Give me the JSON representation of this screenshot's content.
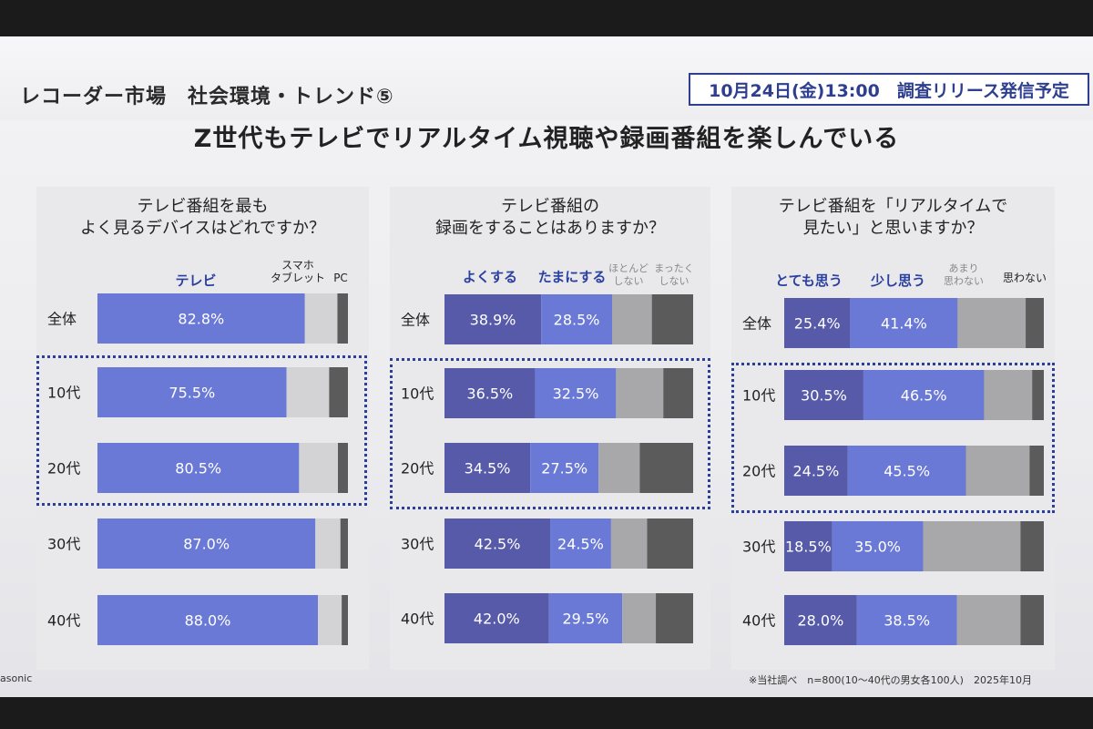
{
  "slide": {
    "title": "レコーダー市場　社会環境・トレンド⑤",
    "badge": "10月24日(金)13:00　調査リリース発信予定",
    "headline": "Z世代もテレビでリアルタイム視聴や録画番組を楽しんでいる",
    "footnote": "※当社調べ　n=800(10～40代の男女各100人)　2025年10月",
    "brand": "asonic"
  },
  "colors": {
    "dark_blue": "#565aa8",
    "light_blue": "#6a79d6",
    "light_gray": "#d3d3d5",
    "mid_gray": "#a8a8aa",
    "dark_gray": "#5c5b5c",
    "dotted_box": "#2a3e9a"
  },
  "chart_data": [
    {
      "type": "bar",
      "stacked": true,
      "orientation": "horizontal",
      "title": "テレビ番組を最も\nよく見るデバイスはどれですか？",
      "categories": [
        "全体",
        "10代",
        "20代",
        "30代",
        "40代"
      ],
      "series": [
        {
          "name": "テレビ",
          "values": [
            82.8,
            75.5,
            80.5,
            87.0,
            88.0
          ],
          "labels": [
            "82.8%",
            "75.5%",
            "80.5%",
            "87.0%",
            "88.0%"
          ]
        },
        {
          "name": "スマホ タブレット",
          "values": [
            13.0,
            17.0,
            15.5,
            10.0,
            9.5
          ]
        },
        {
          "name": "PC",
          "values": [
            4.2,
            7.5,
            4.0,
            3.0,
            2.5
          ]
        }
      ],
      "highlight": [
        "10代",
        "20代"
      ],
      "xlim": [
        0,
        100
      ]
    },
    {
      "type": "bar",
      "stacked": true,
      "orientation": "horizontal",
      "title": "テレビ番組の\n録画をすることはありますか？",
      "categories": [
        "全体",
        "10代",
        "20代",
        "30代",
        "40代"
      ],
      "series": [
        {
          "name": "よくする",
          "values": [
            38.9,
            36.5,
            34.5,
            42.5,
            42.0
          ],
          "labels": [
            "38.9%",
            "36.5%",
            "34.5%",
            "42.5%",
            "42.0%"
          ]
        },
        {
          "name": "たまにする",
          "values": [
            28.5,
            32.5,
            27.5,
            24.5,
            29.5
          ],
          "labels": [
            "28.5%",
            "32.5%",
            "27.5%",
            "24.5%",
            "29.5%"
          ]
        },
        {
          "name": "ほとんど しない",
          "values": [
            16.0,
            19.0,
            16.5,
            14.5,
            13.5
          ]
        },
        {
          "name": "まったく しない",
          "values": [
            16.6,
            12.0,
            21.5,
            18.5,
            15.0
          ]
        }
      ],
      "highlight": [
        "10代",
        "20代"
      ],
      "xlim": [
        0,
        100
      ]
    },
    {
      "type": "bar",
      "stacked": true,
      "orientation": "horizontal",
      "title": "テレビ番組を「リアルタイムで\n見たい」と思いますか？",
      "categories": [
        "全体",
        "10代",
        "20代",
        "30代",
        "40代"
      ],
      "series": [
        {
          "name": "とても思う",
          "values": [
            25.4,
            30.5,
            24.5,
            18.5,
            28.0
          ],
          "labels": [
            "25.4%",
            "30.5%",
            "24.5%",
            "18.5%",
            "28.0%"
          ]
        },
        {
          "name": "少し思う",
          "values": [
            41.4,
            46.5,
            45.5,
            35.0,
            38.5
          ],
          "labels": [
            "41.4%",
            "46.5%",
            "45.5%",
            "35.0%",
            "38.5%"
          ]
        },
        {
          "name": "あまり 思わない",
          "values": [
            26.2,
            18.5,
            24.5,
            37.5,
            24.5
          ]
        },
        {
          "name": "思わない",
          "values": [
            7.0,
            4.5,
            5.5,
            9.0,
            9.0
          ]
        }
      ],
      "highlight": [
        "10代",
        "20代"
      ],
      "xlim": [
        0,
        100
      ]
    }
  ]
}
